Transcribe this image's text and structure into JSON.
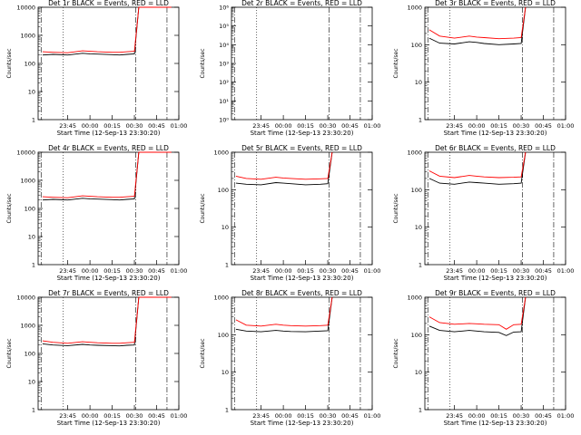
{
  "chart_data": [
    {
      "type": "line",
      "title": "Det 1r BLACK = Events, RED = LLD",
      "xlabel": "Start Time (12-Sep-13 23:30:20)",
      "ylabel": "Counts/sec",
      "yscale": "log",
      "ylim": [
        1,
        10000
      ],
      "ytick_labels": [
        "1",
        "10",
        "100",
        "1000",
        "10000"
      ],
      "xtick_labels": [
        "23:45",
        "00:00",
        "00:15",
        "00:30",
        "00:45",
        "01:00"
      ],
      "xlim_minutes": [
        -20,
        75
      ],
      "series": [
        {
          "name": "BLACK = Events",
          "color": "#000000",
          "x": [
            -17,
            -10,
            0,
            10,
            15,
            20,
            30,
            35,
            40,
            45,
            48,
            55,
            70
          ],
          "y": [
            200,
            210,
            200,
            230,
            220,
            215,
            205,
            200,
            210,
            220,
            10000,
            10000,
            10000
          ]
        },
        {
          "name": "RED = LLD",
          "color": "#ff0000",
          "x": [
            -17,
            -10,
            0,
            10,
            15,
            20,
            30,
            35,
            40,
            45,
            48,
            55,
            70
          ],
          "y": [
            260,
            250,
            240,
            280,
            270,
            260,
            250,
            250,
            260,
            270,
            10000,
            10000,
            10000
          ]
        }
      ]
    },
    {
      "type": "line",
      "title": "Det 2r BLACK = Events, RED = LLD",
      "xlabel": "Start Time (12-Sep-13 23:30:20)",
      "ylabel": "Counts/sec",
      "yscale": "log",
      "ylim": [
        1,
        1000000
      ],
      "ytick_labels": [
        "10⁰",
        "10¹",
        "10²",
        "10³",
        "10⁴",
        "10⁵",
        "10⁶"
      ],
      "xtick_labels": [
        "23:45",
        "00:00",
        "00:15",
        "00:30",
        "00:45",
        "01:00"
      ],
      "xlim_minutes": [
        -20,
        75
      ],
      "series": []
    },
    {
      "type": "line",
      "title": "Det 3r BLACK = Events, RED = LLD",
      "xlabel": "Start Time (12-Sep-13 23:30:20)",
      "ylabel": "Counts/sec",
      "yscale": "log",
      "ylim": [
        1,
        1000
      ],
      "ytick_labels": [
        "1",
        "10",
        "100",
        "1000"
      ],
      "xtick_labels": [
        "23:45",
        "00:00",
        "00:15",
        "00:30",
        "00:45",
        "01:00"
      ],
      "xlim_minutes": [
        -20,
        75
      ],
      "series": [
        {
          "name": "BLACK = Events",
          "color": "#000000",
          "x": [
            -17,
            -10,
            0,
            10,
            15,
            20,
            30,
            40,
            45,
            48
          ],
          "y": [
            150,
            110,
            105,
            120,
            115,
            108,
            100,
            105,
            108,
            1000
          ]
        },
        {
          "name": "RED = LLD",
          "color": "#ff0000",
          "x": [
            -17,
            -10,
            0,
            10,
            15,
            20,
            30,
            40,
            45,
            48
          ],
          "y": [
            250,
            170,
            150,
            170,
            160,
            155,
            145,
            150,
            155,
            1000
          ]
        }
      ]
    },
    {
      "type": "line",
      "title": "Det 4r BLACK = Events, RED = LLD",
      "xlabel": "Start Time (12-Sep-13 23:30:20)",
      "ylabel": "Counts/sec",
      "yscale": "log",
      "ylim": [
        1,
        10000
      ],
      "ytick_labels": [
        "1",
        "10",
        "100",
        "1000",
        "10000"
      ],
      "xtick_labels": [
        "23:45",
        "00:00",
        "00:15",
        "00:30",
        "00:45",
        "01:00"
      ],
      "xlim_minutes": [
        -20,
        75
      ],
      "series": [
        {
          "name": "BLACK = Events",
          "color": "#000000",
          "x": [
            -17,
            -10,
            0,
            10,
            15,
            20,
            30,
            35,
            40,
            45,
            48,
            55,
            70
          ],
          "y": [
            200,
            210,
            200,
            230,
            220,
            215,
            205,
            200,
            210,
            220,
            10000,
            10000,
            10000
          ]
        },
        {
          "name": "RED = LLD",
          "color": "#ff0000",
          "x": [
            -17,
            -10,
            0,
            10,
            15,
            20,
            30,
            35,
            40,
            45,
            48,
            55,
            70
          ],
          "y": [
            260,
            250,
            240,
            280,
            270,
            260,
            250,
            250,
            260,
            270,
            10000,
            10000,
            10000
          ]
        }
      ]
    },
    {
      "type": "line",
      "title": "Det 5r BLACK = Events, RED = LLD",
      "xlabel": "Start Time (12-Sep-13 23:30:20)",
      "ylabel": "Counts/sec",
      "yscale": "log",
      "ylim": [
        1,
        1000
      ],
      "ytick_labels": [
        "1",
        "10",
        "100",
        "1000"
      ],
      "xtick_labels": [
        "23:45",
        "00:00",
        "00:15",
        "00:30",
        "00:45",
        "01:00"
      ],
      "xlim_minutes": [
        -20,
        75
      ],
      "series": [
        {
          "name": "BLACK = Events",
          "color": "#000000",
          "x": [
            -17,
            -10,
            0,
            10,
            15,
            20,
            30,
            40,
            45,
            48
          ],
          "y": [
            150,
            140,
            135,
            155,
            150,
            145,
            135,
            140,
            145,
            1000
          ]
        },
        {
          "name": "RED = LLD",
          "color": "#ff0000",
          "x": [
            -17,
            -10,
            0,
            10,
            15,
            20,
            30,
            40,
            45,
            48
          ],
          "y": [
            230,
            200,
            190,
            215,
            205,
            200,
            190,
            195,
            200,
            1000
          ]
        }
      ]
    },
    {
      "type": "line",
      "title": "Det 6r BLACK = Events, RED = LLD",
      "xlabel": "Start Time (12-Sep-13 23:30:20)",
      "ylabel": "Counts/sec",
      "yscale": "log",
      "ylim": [
        1,
        1000
      ],
      "ytick_labels": [
        "1",
        "10",
        "100",
        "1000"
      ],
      "xtick_labels": [
        "23:45",
        "00:00",
        "00:15",
        "00:30",
        "00:45",
        "01:00"
      ],
      "xlim_minutes": [
        -20,
        75
      ],
      "series": [
        {
          "name": "BLACK = Events",
          "color": "#000000",
          "x": [
            -17,
            -10,
            0,
            10,
            15,
            20,
            30,
            40,
            45,
            48
          ],
          "y": [
            200,
            150,
            140,
            160,
            155,
            150,
            140,
            145,
            150,
            1000
          ]
        },
        {
          "name": "RED = LLD",
          "color": "#ff0000",
          "x": [
            -17,
            -10,
            0,
            10,
            15,
            20,
            30,
            40,
            45,
            48
          ],
          "y": [
            320,
            230,
            210,
            240,
            230,
            220,
            210,
            215,
            220,
            1000
          ]
        }
      ]
    },
    {
      "type": "line",
      "title": "Det 7r BLACK = Events, RED = LLD",
      "xlabel": "Start Time (12-Sep-13 23:30:20)",
      "ylabel": "Counts/sec",
      "yscale": "log",
      "ylim": [
        1,
        10000
      ],
      "ytick_labels": [
        "1",
        "10",
        "100",
        "1000",
        "10000"
      ],
      "xtick_labels": [
        "23:45",
        "00:00",
        "00:15",
        "00:30",
        "00:45",
        "01:00"
      ],
      "xlim_minutes": [
        -20,
        75
      ],
      "series": [
        {
          "name": "BLACK = Events",
          "color": "#000000",
          "x": [
            -17,
            -10,
            0,
            10,
            15,
            20,
            30,
            35,
            40,
            45,
            48,
            55,
            70
          ],
          "y": [
            220,
            200,
            190,
            210,
            200,
            195,
            190,
            185,
            195,
            200,
            10000,
            10000,
            10000
          ]
        },
        {
          "name": "RED = LLD",
          "color": "#ff0000",
          "x": [
            -17,
            -10,
            0,
            10,
            15,
            20,
            30,
            35,
            40,
            45,
            48,
            55,
            70
          ],
          "y": [
            280,
            250,
            230,
            260,
            250,
            240,
            230,
            230,
            240,
            250,
            10000,
            10000,
            10000
          ]
        }
      ]
    },
    {
      "type": "line",
      "title": "Det 8r BLACK = Events, RED = LLD",
      "xlabel": "Start Time (12-Sep-13 23:30:20)",
      "ylabel": "Counts/sec",
      "yscale": "log",
      "ylim": [
        1,
        1000
      ],
      "ytick_labels": [
        "1",
        "10",
        "100",
        "1000"
      ],
      "xtick_labels": [
        "23:45",
        "00:00",
        "00:15",
        "00:30",
        "00:45",
        "01:00"
      ],
      "xlim_minutes": [
        -20,
        75
      ],
      "series": [
        {
          "name": "BLACK = Events",
          "color": "#000000",
          "x": [
            -17,
            -10,
            0,
            10,
            15,
            20,
            30,
            40,
            45,
            48
          ],
          "y": [
            140,
            125,
            120,
            130,
            125,
            122,
            120,
            125,
            128,
            1000
          ]
        },
        {
          "name": "RED = LLD",
          "color": "#ff0000",
          "x": [
            -17,
            -10,
            0,
            10,
            15,
            20,
            30,
            40,
            45,
            48
          ],
          "y": [
            250,
            180,
            170,
            190,
            180,
            175,
            170,
            175,
            180,
            1000
          ]
        }
      ]
    },
    {
      "type": "line",
      "title": "Det 9r BLACK = Events, RED = LLD",
      "xlabel": "Start Time (12-Sep-13 23:30:20)",
      "ylabel": "Counts/sec",
      "yscale": "log",
      "ylim": [
        1,
        1000
      ],
      "ytick_labels": [
        "1",
        "10",
        "100",
        "1000"
      ],
      "xtick_labels": [
        "23:45",
        "00:00",
        "00:15",
        "00:30",
        "00:45",
        "01:00"
      ],
      "xlim_minutes": [
        -20,
        75
      ],
      "series": [
        {
          "name": "BLACK = Events",
          "color": "#000000",
          "x": [
            -17,
            -10,
            0,
            10,
            15,
            20,
            30,
            35,
            40,
            45,
            48
          ],
          "y": [
            170,
            130,
            120,
            130,
            125,
            120,
            115,
            95,
            118,
            120,
            1000
          ]
        },
        {
          "name": "RED = LLD",
          "color": "#ff0000",
          "x": [
            -17,
            -10,
            0,
            10,
            15,
            20,
            30,
            35,
            40,
            45,
            48
          ],
          "y": [
            300,
            210,
            190,
            200,
            195,
            190,
            185,
            140,
            185,
            190,
            1000
          ]
        }
      ]
    }
  ]
}
